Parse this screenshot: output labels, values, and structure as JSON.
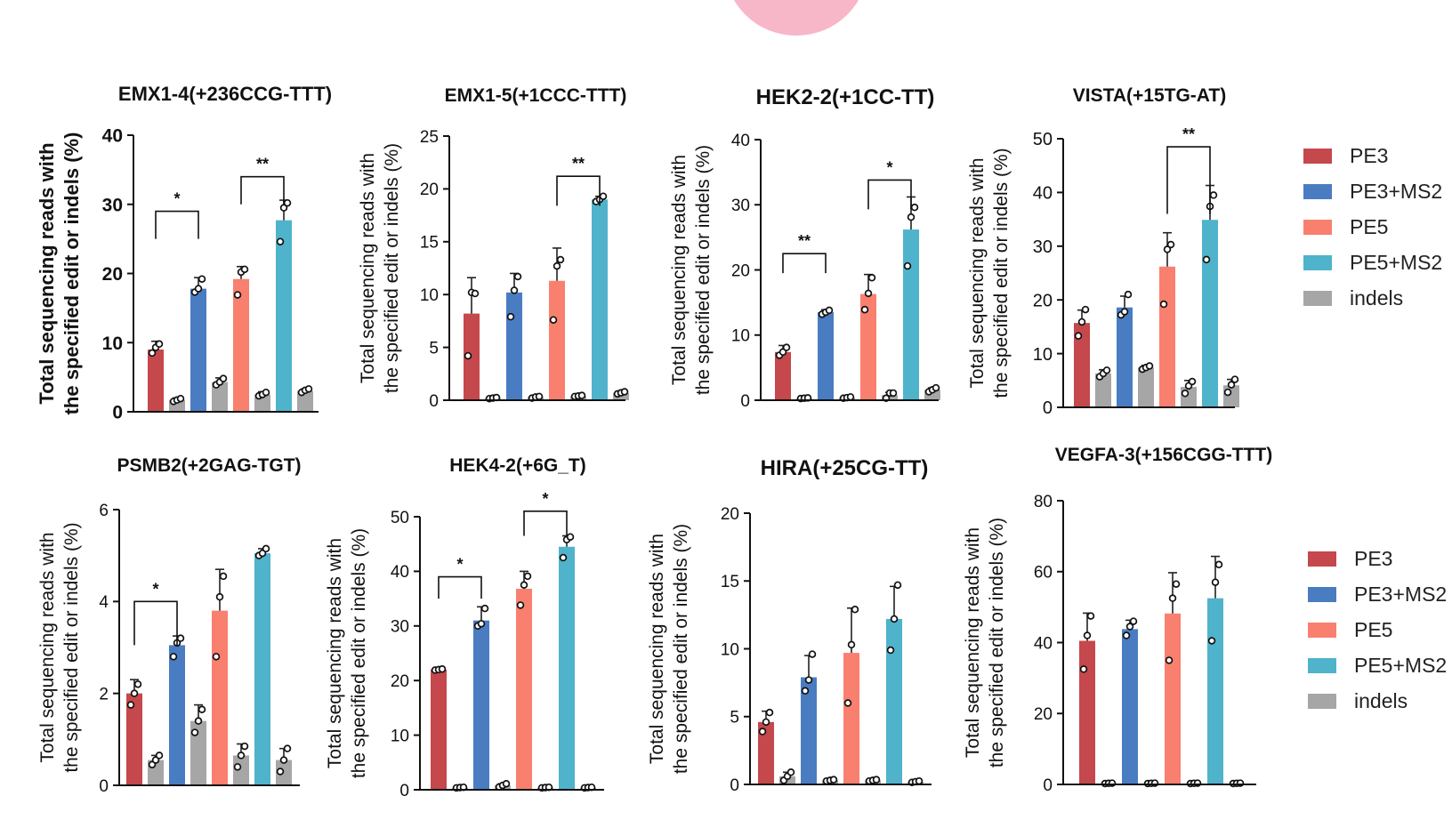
{
  "colors": {
    "PE3": "#c4484c",
    "PE3+MS2": "#4a7cc2",
    "PE5": "#f97f6e",
    "PE5+MS2": "#4fb3cb",
    "indels": "#a6a6a6"
  },
  "legends": [
    {
      "items": [
        "PE3",
        "PE3+MS2",
        "PE5",
        "PE5+MS2",
        "indels"
      ]
    },
    {
      "items": [
        "PE3",
        "PE3+MS2",
        "PE5",
        "PE5+MS2",
        "indels"
      ]
    }
  ],
  "chart_data": [
    {
      "type": "bar",
      "title": "EMX1-4(+236CCG-TTT)",
      "ylabel_lines": [
        "Total sequencing reads with",
        "the specified edit or indels (%)"
      ],
      "ylim": [
        0,
        40
      ],
      "yticks": [
        0,
        10,
        20,
        30,
        40
      ],
      "bars": [
        {
          "group": "PE3",
          "value": 9,
          "err": 1.2,
          "points": [
            8.5,
            9.3,
            9.8
          ]
        },
        {
          "group": "indels",
          "value": 1.7,
          "err": 0.3,
          "points": [
            1.5,
            1.7,
            1.9
          ]
        },
        {
          "group": "PE3+MS2",
          "value": 17.8,
          "err": 1.6,
          "points": [
            17.3,
            17.8,
            19.2
          ]
        },
        {
          "group": "indels",
          "value": 4.3,
          "err": 0.6,
          "points": [
            3.9,
            4.3,
            4.8
          ]
        },
        {
          "group": "PE5",
          "value": 19.2,
          "err": 1.8,
          "points": [
            16.9,
            20.2,
            20.6
          ]
        },
        {
          "group": "indels",
          "value": 2.5,
          "err": 0.4,
          "points": [
            2.3,
            2.5,
            2.8
          ]
        },
        {
          "group": "PE5+MS2",
          "value": 27.7,
          "err": 2.9,
          "points": [
            24.6,
            29.5,
            30.2
          ]
        },
        {
          "group": "indels",
          "value": 3,
          "err": 0.3,
          "points": [
            2.8,
            3.1,
            3.3
          ]
        }
      ],
      "sig": [
        {
          "from": 0,
          "to": 2,
          "y": 29,
          "drop": 4,
          "label": "*"
        },
        {
          "from": 4,
          "to": 6,
          "y": 34,
          "drop": 4,
          "label": "**"
        }
      ]
    },
    {
      "type": "bar",
      "title": "EMX1-5(+1CCC-TTT)",
      "ylabel_lines": [
        "Total sequencing reads with",
        "the specified edit or indels (%)"
      ],
      "ylim": [
        0,
        25
      ],
      "yticks": [
        0,
        5,
        10,
        15,
        20,
        25
      ],
      "bars": [
        {
          "group": "PE3",
          "value": 8.2,
          "err": 3.4,
          "points": [
            4.2,
            10.2,
            10.1
          ]
        },
        {
          "group": "indels",
          "value": 0.2,
          "err": 0.05,
          "points": [
            0.15,
            0.2,
            0.25
          ]
        },
        {
          "group": "PE3+MS2",
          "value": 10.2,
          "err": 1.8,
          "points": [
            7.9,
            10.4,
            11.7
          ]
        },
        {
          "group": "indels",
          "value": 0.3,
          "err": 0.05,
          "points": [
            0.2,
            0.3,
            0.35
          ]
        },
        {
          "group": "PE5",
          "value": 11.3,
          "err": 3.1,
          "points": [
            7.6,
            12.7,
            13.3
          ]
        },
        {
          "group": "indels",
          "value": 0.4,
          "err": 0.05,
          "points": [
            0.35,
            0.4,
            0.45
          ]
        },
        {
          "group": "PE5+MS2",
          "value": 19,
          "err": 0.3,
          "points": [
            18.8,
            19.0,
            19.3
          ]
        },
        {
          "group": "indels",
          "value": 0.7,
          "err": 0.1,
          "points": [
            0.6,
            0.7,
            0.8
          ]
        }
      ],
      "sig": [
        {
          "from": 4,
          "to": 6,
          "y": 21.2,
          "drop": 2.8,
          "label": "**"
        }
      ]
    },
    {
      "type": "bar",
      "title": "HEK2-2(+1CC-TT)",
      "ylabel_lines": [
        "Total sequencing reads with",
        "the specified edit or indels (%)"
      ],
      "ylim": [
        0,
        40
      ],
      "yticks": [
        0,
        10,
        20,
        30,
        40
      ],
      "bars": [
        {
          "group": "PE3",
          "value": 7.4,
          "err": 1,
          "points": [
            6.9,
            7.4,
            8.1
          ]
        },
        {
          "group": "indels",
          "value": 0.3,
          "err": 0.05,
          "points": [
            0.25,
            0.3,
            0.35
          ]
        },
        {
          "group": "PE3+MS2",
          "value": 13.5,
          "err": 0.4,
          "points": [
            13.2,
            13.5,
            13.8
          ]
        },
        {
          "group": "indels",
          "value": 0.4,
          "err": 0.1,
          "points": [
            0.3,
            0.4,
            0.5
          ]
        },
        {
          "group": "PE5",
          "value": 16.3,
          "err": 3,
          "points": [
            13.9,
            16.4,
            18.8
          ]
        },
        {
          "group": "indels",
          "value": 0.8,
          "err": 0.4,
          "points": [
            0.3,
            1.1,
            1.1
          ]
        },
        {
          "group": "PE5+MS2",
          "value": 26.2,
          "err": 5,
          "points": [
            20.6,
            28.1,
            29.6
          ]
        },
        {
          "group": "indels",
          "value": 1.6,
          "err": 0.3,
          "points": [
            1.3,
            1.6,
            1.9
          ]
        }
      ],
      "sig": [
        {
          "from": 0,
          "to": 2,
          "y": 22.5,
          "drop": 3,
          "label": "**"
        },
        {
          "from": 4,
          "to": 6,
          "y": 33.8,
          "drop": 4.5,
          "label": "*"
        }
      ]
    },
    {
      "type": "bar",
      "title": "VISTA(+15TG-AT)",
      "ylabel_lines": [
        "Total sequencing reads with",
        "the specified edit or indels (%)"
      ],
      "ylim": [
        0,
        50
      ],
      "yticks": [
        0,
        10,
        20,
        30,
        40,
        50
      ],
      "bars": [
        {
          "group": "PE3",
          "value": 15.7,
          "err": 2.4,
          "points": [
            13.3,
            15.9,
            18.2
          ]
        },
        {
          "group": "indels",
          "value": 6.3,
          "err": 0.7,
          "points": [
            5.7,
            6.3,
            6.9
          ]
        },
        {
          "group": "PE3+MS2",
          "value": 18.6,
          "err": 2.1,
          "points": [
            17.2,
            17.8,
            21.0
          ]
        },
        {
          "group": "indels",
          "value": 7.4,
          "err": 0.4,
          "points": [
            7.1,
            7.4,
            7.7
          ]
        },
        {
          "group": "PE5",
          "value": 26.2,
          "err": 6.3,
          "points": [
            19.2,
            29.4,
            30.3
          ]
        },
        {
          "group": "indels",
          "value": 3.8,
          "err": 1.2,
          "points": [
            2.6,
            4.0,
            4.8
          ]
        },
        {
          "group": "PE5+MS2",
          "value": 34.9,
          "err": 6.4,
          "points": [
            27.5,
            37.4,
            39.5
          ]
        },
        {
          "group": "indels",
          "value": 4.1,
          "err": 1.1,
          "points": [
            2.8,
            4.2,
            5.2
          ]
        }
      ],
      "sig": [
        {
          "from": 4,
          "to": 6,
          "y": 48.5,
          "drop": 12.5,
          "label": "**"
        }
      ]
    },
    {
      "type": "bar",
      "title": "PSMB2(+2GAG-TGT)",
      "ylabel_lines": [
        "Total sequencing reads with",
        "the specified edit or indels (%)"
      ],
      "ylim": [
        0,
        6
      ],
      "yticks": [
        0,
        2,
        4,
        6
      ],
      "bars": [
        {
          "group": "PE3",
          "value": 2,
          "err": 0.3,
          "points": [
            1.75,
            2.0,
            2.2
          ]
        },
        {
          "group": "indels",
          "value": 0.55,
          "err": 0.1,
          "points": [
            0.45,
            0.55,
            0.65
          ]
        },
        {
          "group": "PE3+MS2",
          "value": 3.05,
          "err": 0.2,
          "points": [
            2.8,
            3.1,
            3.2
          ]
        },
        {
          "group": "indels",
          "value": 1.4,
          "err": 0.35,
          "points": [
            1.15,
            1.4,
            1.65
          ]
        },
        {
          "group": "PE5",
          "value": 3.8,
          "err": 0.9,
          "points": [
            2.8,
            4.1,
            4.55
          ]
        },
        {
          "group": "indels",
          "value": 0.65,
          "err": 0.25,
          "points": [
            0.4,
            0.65,
            0.85
          ]
        },
        {
          "group": "PE5+MS2",
          "value": 5.05,
          "err": 0.1,
          "points": [
            5.0,
            5.05,
            5.15
          ]
        },
        {
          "group": "indels",
          "value": 0.55,
          "err": 0.25,
          "points": [
            0.3,
            0.55,
            0.8
          ]
        }
      ],
      "sig": [
        {
          "from": 0,
          "to": 2,
          "y": 4,
          "drop": 0.95,
          "label": "*"
        }
      ]
    },
    {
      "type": "bar",
      "title": "HEK4-2(+6G_T)",
      "ylabel_lines": [
        "Total sequencing reads with",
        "the specified edit or indels (%)"
      ],
      "ylim": [
        0,
        50
      ],
      "yticks": [
        0,
        10,
        20,
        30,
        40,
        50
      ],
      "bars": [
        {
          "group": "PE3",
          "value": 22,
          "err": 0.1,
          "points": [
            21.9,
            22.0,
            22.1
          ]
        },
        {
          "group": "indels",
          "value": 0.4,
          "err": 0.05,
          "points": [
            0.35,
            0.4,
            0.45
          ]
        },
        {
          "group": "PE3+MS2",
          "value": 31,
          "err": 2.5,
          "points": [
            30.0,
            30.4,
            33.2
          ]
        },
        {
          "group": "indels",
          "value": 0.8,
          "err": 0.3,
          "points": [
            0.5,
            0.8,
            1.1
          ]
        },
        {
          "group": "PE5",
          "value": 36.8,
          "err": 3.2,
          "points": [
            33.8,
            37.5,
            39.1
          ]
        },
        {
          "group": "indels",
          "value": 0.4,
          "err": 0.05,
          "points": [
            0.35,
            0.4,
            0.45
          ]
        },
        {
          "group": "PE5+MS2",
          "value": 44.5,
          "err": 2,
          "points": [
            42.5,
            45.8,
            46.3
          ]
        },
        {
          "group": "indels",
          "value": 0.4,
          "err": 0.05,
          "points": [
            0.35,
            0.4,
            0.45
          ]
        }
      ],
      "sig": [
        {
          "from": 0,
          "to": 2,
          "y": 39,
          "drop": 4,
          "label": "*"
        },
        {
          "from": 4,
          "to": 6,
          "y": 51,
          "drop": 4.5,
          "label": "*"
        }
      ]
    },
    {
      "type": "bar",
      "title": "HIRA(+25CG-TT)",
      "ylabel_lines": [
        "Total sequencing reads with",
        "the specified edit or indels (%)"
      ],
      "ylim": [
        0,
        20
      ],
      "yticks": [
        0,
        5,
        10,
        15,
        20
      ],
      "bars": [
        {
          "group": "PE3",
          "value": 4.6,
          "err": 0.8,
          "points": [
            3.9,
            4.6,
            5.3
          ]
        },
        {
          "group": "indels",
          "value": 0.6,
          "err": 0.3,
          "points": [
            0.3,
            0.6,
            0.9
          ]
        },
        {
          "group": "PE3+MS2",
          "value": 7.9,
          "err": 1.6,
          "points": [
            6.9,
            7.7,
            9.6
          ]
        },
        {
          "group": "indels",
          "value": 0.3,
          "err": 0.05,
          "points": [
            0.25,
            0.3,
            0.35
          ]
        },
        {
          "group": "PE5",
          "value": 9.7,
          "err": 3.3,
          "points": [
            6.0,
            10.3,
            12.9
          ]
        },
        {
          "group": "indels",
          "value": 0.3,
          "err": 0.05,
          "points": [
            0.25,
            0.3,
            0.35
          ]
        },
        {
          "group": "PE5+MS2",
          "value": 12.2,
          "err": 2.4,
          "points": [
            9.9,
            12.2,
            14.7
          ]
        },
        {
          "group": "indels",
          "value": 0.2,
          "err": 0.05,
          "points": [
            0.15,
            0.2,
            0.25
          ]
        }
      ],
      "sig": []
    },
    {
      "type": "bar",
      "title": "VEGFA-3(+156CGG-TTT)",
      "ylabel_lines": [
        "Total sequencing reads with",
        "the specified edit or indels (%)"
      ],
      "ylim": [
        0,
        80
      ],
      "yticks": [
        0,
        20,
        40,
        60,
        80
      ],
      "bars": [
        {
          "group": "PE3",
          "value": 40.5,
          "err": 7.8,
          "points": [
            32.5,
            42.0,
            47.5
          ]
        },
        {
          "group": "indels",
          "value": 0.3,
          "err": 0.05,
          "points": [
            0.25,
            0.3,
            0.35
          ]
        },
        {
          "group": "PE3+MS2",
          "value": 43.8,
          "err": 2.5,
          "points": [
            42.0,
            44.5,
            46.0
          ]
        },
        {
          "group": "indels",
          "value": 0.3,
          "err": 0.05,
          "points": [
            0.25,
            0.3,
            0.35
          ]
        },
        {
          "group": "PE5",
          "value": 48.2,
          "err": 11.5,
          "points": [
            35.0,
            52.5,
            56.5
          ]
        },
        {
          "group": "indels",
          "value": 0.3,
          "err": 0.05,
          "points": [
            0.25,
            0.3,
            0.35
          ]
        },
        {
          "group": "PE5+MS2",
          "value": 52.5,
          "err": 11.8,
          "points": [
            40.5,
            57.0,
            62.0
          ]
        },
        {
          "group": "indels",
          "value": 0.3,
          "err": 0.05,
          "points": [
            0.25,
            0.3,
            0.35
          ]
        }
      ],
      "sig": []
    }
  ]
}
